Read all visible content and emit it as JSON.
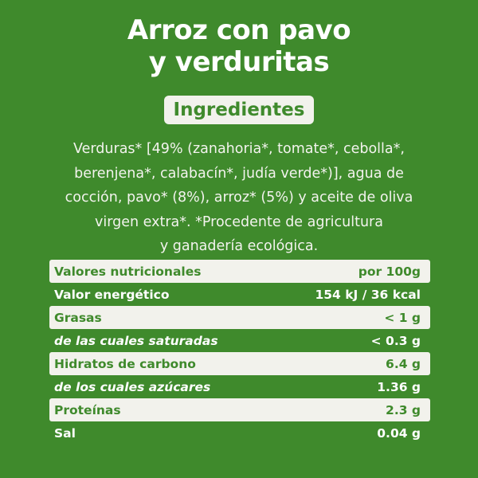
{
  "title": {
    "line1": "Arroz con pavo",
    "line2": "y verduritas"
  },
  "ingredients_heading": "Ingredientes",
  "ingredients_lines": [
    "Verduras* [49% (zanahoria*, tomate*, cebolla*,",
    "berenjena*, calabacín*, judía verde*)], agua de",
    "cocción, pavo* (8%), arroz* (5%) y aceite de oliva",
    "virgen extra*. *Procedente de agricultura",
    "y ganadería ecológica."
  ],
  "nutrition": {
    "header": {
      "label": "Valores nutricionales",
      "value": "por 100g"
    },
    "rows": [
      {
        "label": "Valor energético",
        "value": "154 kJ / 36 kcal"
      },
      {
        "label": "Grasas",
        "value": "< 1 g"
      },
      {
        "label": "de las cuales saturadas",
        "value": "< 0.3 g"
      },
      {
        "label": "Hidratos de carbono",
        "value": "6.4 g"
      },
      {
        "label": "de los cuales azúcares",
        "value": "1.36 g"
      },
      {
        "label": "Proteínas",
        "value": "2.3 g"
      },
      {
        "label": "Sal",
        "value": "0.04 g"
      }
    ]
  },
  "colors": {
    "background": "#3f8a2c",
    "band": "#f2f2ec",
    "text": "#ffffff"
  }
}
